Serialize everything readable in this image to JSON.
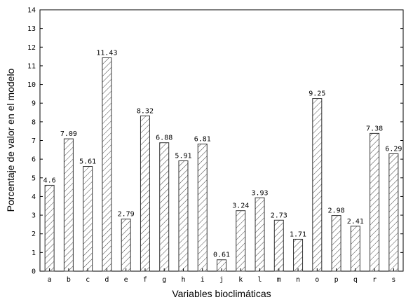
{
  "chart_data": {
    "type": "bar",
    "title": "",
    "xlabel": "Variables bioclimáticas",
    "ylabel": "Porcentaje de valor en el modelo",
    "categories": [
      "a",
      "b",
      "c",
      "d",
      "e",
      "f",
      "g",
      "h",
      "i",
      "j",
      "k",
      "l",
      "m",
      "n",
      "o",
      "p",
      "q",
      "r",
      "s"
    ],
    "values": [
      4.6,
      7.09,
      5.61,
      11.43,
      2.79,
      8.32,
      6.88,
      5.91,
      6.81,
      0.61,
      3.24,
      3.93,
      2.73,
      1.71,
      9.25,
      2.98,
      2.41,
      7.38,
      6.29
    ],
    "value_labels": [
      "4.6",
      "7.09",
      "5.61",
      "11.43",
      "2.79",
      "8.32",
      "6.88",
      "5.91",
      "6.81",
      "0.61",
      "3.24",
      "3.93",
      "2.73",
      "1.71",
      "9.25",
      "2.98",
      "2.41",
      "7.38",
      "6.29"
    ],
    "ylim": [
      0,
      14
    ],
    "yticks": [
      0,
      1,
      2,
      3,
      4,
      5,
      6,
      7,
      8,
      9,
      10,
      11,
      12,
      13,
      14
    ],
    "grid": false,
    "bar_fill": "hatched",
    "colors": {
      "bar_stroke": "#333333",
      "axis": "#000000"
    }
  }
}
